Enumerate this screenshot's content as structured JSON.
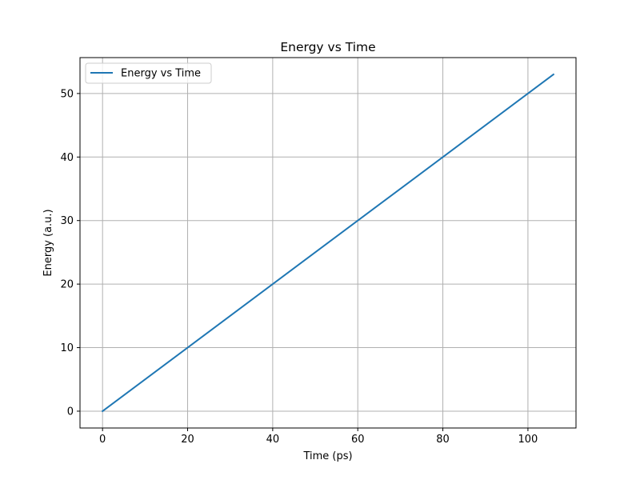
{
  "chart_data": {
    "type": "line",
    "title": "Energy vs Time",
    "xlabel": "Time (ps)",
    "ylabel": "Energy (a.u.)",
    "xlim": [
      -5.3,
      111.3
    ],
    "ylim": [
      -2.65,
      55.65
    ],
    "xticks": [
      0,
      20,
      40,
      60,
      80,
      100
    ],
    "yticks": [
      0,
      10,
      20,
      30,
      40,
      50
    ],
    "grid": true,
    "legend_position": "upper left",
    "series": [
      {
        "name": "Energy vs Time",
        "color": "#1f77b4",
        "x": [
          0,
          106
        ],
        "y": [
          0,
          53
        ]
      }
    ]
  }
}
